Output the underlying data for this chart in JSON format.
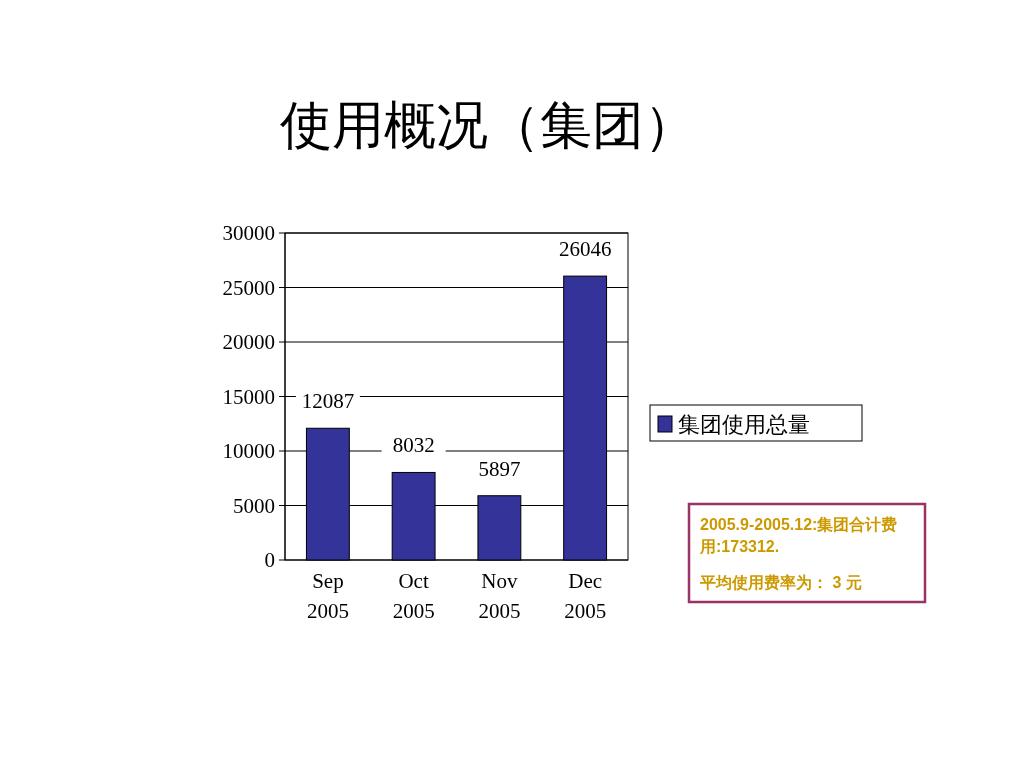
{
  "chart_data": {
    "type": "bar",
    "title": "使用概况（集团）",
    "categories": [
      "Sep\n2005",
      "Oct\n2005",
      "Nov\n2005",
      "Dec\n2005"
    ],
    "series": [
      {
        "name": "集团使用总量",
        "color": "#333399",
        "values": [
          12087,
          8032,
          5897,
          26046
        ]
      }
    ],
    "ylim": [
      0,
      30000
    ],
    "yticks": [
      0,
      5000,
      10000,
      15000,
      20000,
      25000,
      30000
    ],
    "grid": "y",
    "legend": "right",
    "data_labels": true,
    "annotations": [
      "2005.9-2005.12:集团合计费用:173312.",
      "平均使用费率为： 3 元"
    ]
  }
}
